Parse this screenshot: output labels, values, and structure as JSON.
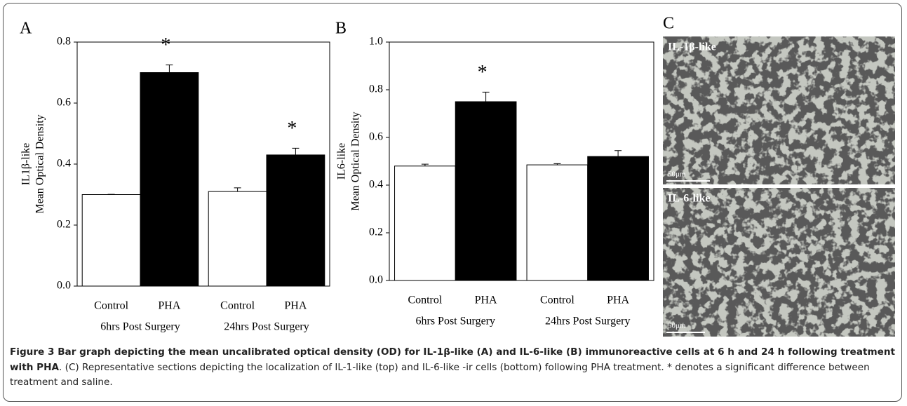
{
  "chart_data": [
    {
      "type": "bar",
      "panel": "A",
      "ylabel": [
        "IL1β-like",
        "Mean Optical Density"
      ],
      "categories": [
        "6hrs Post Surgery",
        "24hrs Post Surgery"
      ],
      "series": [
        {
          "name": "Control",
          "color": "#ffffff",
          "values": [
            0.3,
            0.31
          ],
          "errors": [
            0.001,
            0.012
          ]
        },
        {
          "name": "PHA",
          "color": "#000000",
          "values": [
            0.7,
            0.43
          ],
          "errors": [
            0.025,
            0.022
          ],
          "marker_labels": [
            "*",
            "*"
          ]
        }
      ],
      "ylim": [
        0,
        0.8
      ],
      "yticks": [
        {
          "value": 0,
          "label": "0.0"
        },
        0.2,
        0.4,
        0.6,
        0.8
      ]
    },
    {
      "type": "bar",
      "panel": "B",
      "ylabel": [
        "IL6-like",
        "Mean Optical Density"
      ],
      "categories": [
        "6hrs Post Surgery",
        "24hrs Post Surgery"
      ],
      "series": [
        {
          "name": "Control",
          "color": "#ffffff",
          "values": [
            0.48,
            0.485
          ],
          "errors": [
            0.008,
            0.005
          ]
        },
        {
          "name": "PHA",
          "color": "#000000",
          "values": [
            0.75,
            0.52
          ],
          "errors": [
            0.04,
            0.025
          ],
          "marker_labels": [
            "*",
            null
          ]
        }
      ],
      "ylim": [
        0,
        1
      ],
      "yticks": [
        {
          "value": 0,
          "label": "0.0"
        },
        0.2,
        0.4,
        0.6,
        0.8,
        {
          "value": 1,
          "label": "1.0"
        }
      ]
    }
  ],
  "panel_c": {
    "letter": "C",
    "images": [
      {
        "label": "IL-1β-like",
        "scale": "50μm"
      },
      {
        "label": "IL-6-like",
        "scale": "50μm"
      }
    ]
  },
  "caption": {
    "bold": "Figure 3 Bar graph depicting the mean uncalibrated optical density (OD) for IL-1β-like (A) and IL-6-like (B) immunoreactive cells at 6 h and 24 h following treatment with PHA",
    "text": ". (C) Representative sections depicting the localization of IL-1-like (top) and IL-6-like -ir cells (bottom) following PHA treatment. * denotes a significant difference between treatment and saline."
  }
}
